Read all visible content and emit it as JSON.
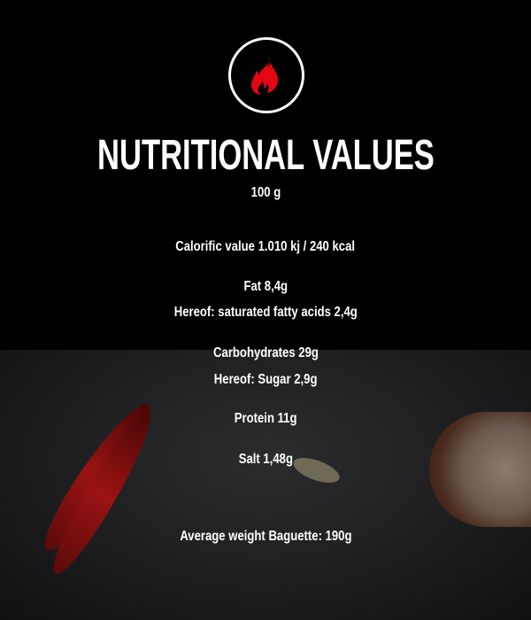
{
  "icon": "flame-icon",
  "colors": {
    "flame": "#e30613",
    "background": "#000000",
    "text": "#ffffff"
  },
  "title": "NUTRITIONAL VALUES",
  "portion": "100 g",
  "values": {
    "calorific": "Calorific value 1.010 kj / 240 kcal",
    "fat": "Fat 8,4g",
    "saturated": "Hereof: saturated fatty acids 2,4g",
    "carbs": "Carbohydrates 29g",
    "sugar": "Hereof: Sugar 2,9g",
    "protein": "Protein 11g",
    "salt": "Salt 1,48g",
    "weight": "Average weight Baguette: 190g"
  }
}
